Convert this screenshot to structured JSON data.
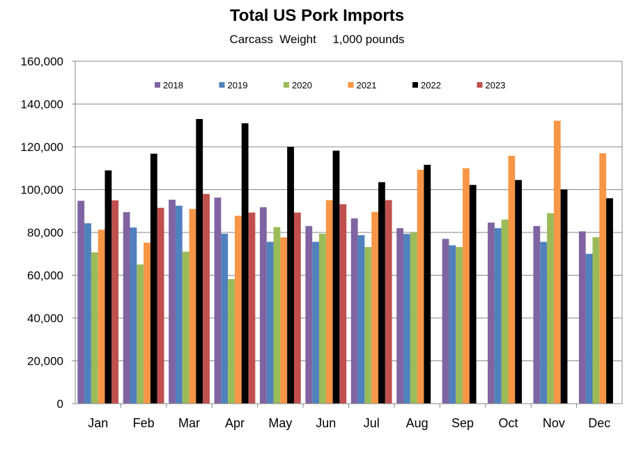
{
  "chart_data": {
    "type": "bar",
    "title": "Total US Pork Imports",
    "subtitle": "Carcass  Weight     1,000 pounds",
    "xlabel": "",
    "ylabel": "",
    "ylim": [
      0,
      160000
    ],
    "yticks": [
      0,
      20000,
      40000,
      60000,
      80000,
      100000,
      120000,
      140000,
      160000
    ],
    "ytick_labels": [
      "0",
      "20,000",
      "40,000",
      "60,000",
      "80,000",
      "100,000",
      "120,000",
      "140,000",
      "160,000"
    ],
    "grid": true,
    "legend_position": "top-center",
    "categories": [
      "Jan",
      "Feb",
      "Mar",
      "Apr",
      "May",
      "Jun",
      "Jul",
      "Aug",
      "Sep",
      "Oct",
      "Nov",
      "Dec"
    ],
    "series": [
      {
        "name": "2018",
        "color": "#8064A2",
        "values": [
          94800,
          89500,
          95300,
          96300,
          91800,
          83000,
          86600,
          82000,
          77000,
          84600,
          83000,
          80500
        ]
      },
      {
        "name": "2019",
        "color": "#4F81BD",
        "values": [
          84300,
          82300,
          92500,
          79400,
          75600,
          75600,
          78700,
          79300,
          74000,
          82000,
          75600,
          70000
        ]
      },
      {
        "name": "2020",
        "color": "#9BBB59",
        "values": [
          70700,
          65000,
          71000,
          58200,
          82500,
          79400,
          73200,
          80000,
          73200,
          86000,
          89000,
          77800
        ]
      },
      {
        "name": "2021",
        "color": "#F79646",
        "values": [
          81300,
          75200,
          91000,
          87800,
          77700,
          95100,
          89600,
          109300,
          110000,
          115800,
          132200,
          117000
        ]
      },
      {
        "name": "2022",
        "color": "#000000",
        "values": [
          109000,
          116800,
          133000,
          131000,
          120000,
          118200,
          103500,
          111600,
          102200,
          104500,
          100100,
          96000
        ]
      },
      {
        "name": "2023",
        "color": "#C0504D",
        "values": [
          95000,
          91500,
          98000,
          89300,
          89300,
          93200,
          95100,
          null,
          null,
          null,
          null,
          null
        ]
      }
    ]
  }
}
